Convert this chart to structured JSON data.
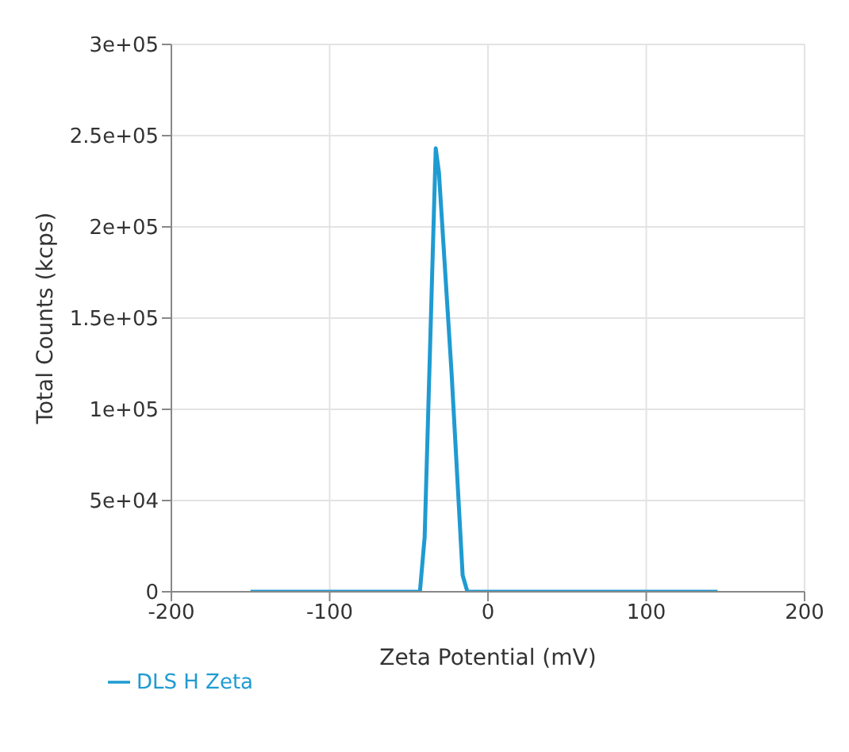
{
  "chart_data": {
    "type": "line",
    "xlabel": "Zeta Potential (mV)",
    "ylabel": "Total Counts (kcps)",
    "x": [
      -150,
      -43,
      -40,
      -33,
      -31,
      -23,
      -16,
      -13,
      145
    ],
    "series": [
      {
        "name": "DLS H Zeta",
        "color": "#1f9bd1",
        "values": [
          0,
          0,
          30000,
          243000,
          230000,
          120000,
          9000,
          0,
          0
        ]
      }
    ],
    "xlim": [
      -200,
      200
    ],
    "xticks": [
      -200,
      -100,
      0,
      100,
      200
    ],
    "ylim": [
      0,
      300000
    ],
    "yticks": [
      0,
      {
        "value": 50000,
        "label": "5e+04"
      },
      {
        "value": 100000,
        "label": "1e+05"
      },
      {
        "value": 150000,
        "label": "1.5e+05"
      },
      {
        "value": 200000,
        "label": "2e+05"
      },
      {
        "value": 250000,
        "label": "2.5e+05"
      },
      {
        "value": 300000,
        "label": "3e+05"
      }
    ],
    "grid": true,
    "legend": "bottom left",
    "marker": "none",
    "line_style": "solid"
  }
}
